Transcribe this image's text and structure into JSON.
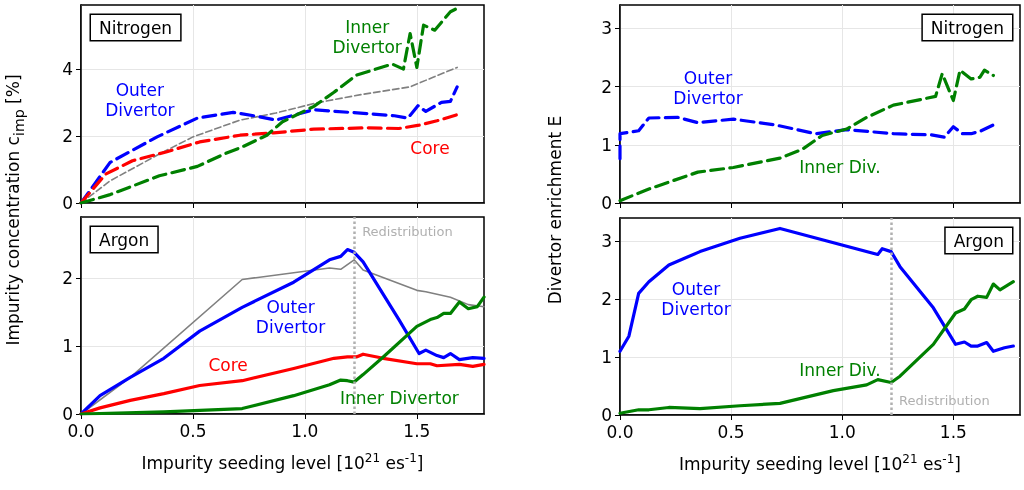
{
  "chart_data": [
    {
      "type": "line",
      "ylabel": "Impurity concentration c$_{imp}$ [%]",
      "annotations": [
        "Nitrogen"
      ],
      "xlim": [
        0,
        1.8
      ],
      "xticks": [
        0,
        0.5,
        1,
        1.5
      ],
      "ylim": [
        0,
        5.9
      ],
      "yticks": [
        0,
        2,
        4
      ],
      "tick_labels": "y",
      "grid": true,
      "line_style": "dashed",
      "series": [
        {
          "name": "Outer Divertor",
          "color": "#0000ff",
          "x": [
            0,
            0.13,
            0.34,
            0.52,
            0.68,
            0.79,
            0.87,
            1.04,
            1.28,
            1.4,
            1.46,
            1.505,
            1.54,
            1.61,
            1.65,
            1.68
          ],
          "values": [
            0,
            1.21,
            1.97,
            2.53,
            2.7,
            2.58,
            2.47,
            2.78,
            2.66,
            2.6,
            2.53,
            2.9,
            2.73,
            3.0,
            3.03,
            3.46
          ]
        },
        {
          "name": "Core",
          "color": "#ff0000",
          "x": [
            0,
            0.11,
            0.23,
            0.38,
            0.53,
            0.71,
            0.86,
            1.04,
            1.28,
            1.42,
            1.51,
            1.59,
            1.68
          ],
          "values": [
            0,
            0.86,
            1.26,
            1.52,
            1.82,
            2.02,
            2.09,
            2.2,
            2.24,
            2.22,
            2.32,
            2.45,
            2.63
          ]
        },
        {
          "name": "Inner Divertor",
          "color": "#008000",
          "x": [
            0,
            0.13,
            0.35,
            0.52,
            0.64,
            0.72,
            0.83,
            0.9,
            1.04,
            1.13,
            1.23,
            1.39,
            1.44,
            1.46,
            1.47,
            1.5,
            1.53,
            1.58,
            1.65,
            1.68
          ],
          "values": [
            0,
            0.25,
            0.81,
            1.09,
            1.46,
            1.67,
            2.02,
            2.42,
            2.88,
            3.3,
            3.81,
            4.14,
            3.99,
            4.7,
            5.05,
            4.04,
            5.3,
            5.15,
            5.7,
            5.8
          ]
        },
        {
          "color": "#808080",
          "x": [
            0,
            0.13,
            0.35,
            0.5,
            0.71,
            0.87,
            1.05,
            1.25,
            1.47,
            1.57,
            1.68
          ],
          "values": [
            0,
            0.66,
            1.46,
            1.97,
            2.47,
            2.68,
            2.98,
            3.23,
            3.46,
            3.74,
            4.04
          ]
        }
      ]
    },
    {
      "type": "line",
      "ylabel": "Divertor enrichment E",
      "annotations": [
        "Nitrogen"
      ],
      "xlim": [
        0,
        1.8
      ],
      "xticks": [
        0,
        0.5,
        1,
        1.5
      ],
      "ylim": [
        0,
        3.4
      ],
      "yticks": [
        0,
        1,
        2,
        3
      ],
      "tick_labels": "y",
      "grid": true,
      "line_style": "dashed",
      "series": [
        {
          "name": "Outer Divertor",
          "color": "#0000ff",
          "x": [
            0,
            0,
            0.084,
            0.13,
            0.26,
            0.35,
            0.51,
            0.7,
            0.88,
            1.02,
            1.23,
            1.4,
            1.46,
            1.5,
            1.54,
            1.58,
            1.62,
            1.68
          ],
          "values": [
            0.76,
            1.19,
            1.24,
            1.46,
            1.47,
            1.38,
            1.44,
            1.34,
            1.19,
            1.26,
            1.19,
            1.17,
            1.13,
            1.31,
            1.19,
            1.19,
            1.23,
            1.34
          ]
        },
        {
          "name": "Inner Div.",
          "color": "#008000",
          "x": [
            0,
            0.13,
            0.35,
            0.51,
            0.72,
            0.82,
            0.91,
            1.02,
            1.11,
            1.23,
            1.42,
            1.45,
            1.5,
            1.53,
            1.58,
            1.62,
            1.64,
            1.68
          ],
          "values": [
            0.04,
            0.24,
            0.53,
            0.61,
            0.77,
            0.92,
            1.16,
            1.27,
            1.47,
            1.68,
            1.83,
            2.22,
            1.76,
            2.28,
            2.13,
            2.16,
            2.28,
            2.19
          ]
        }
      ]
    },
    {
      "type": "line",
      "xlabel": "Impurity seeding level [10$^{21}$ es$^{-1}$]",
      "annotations": [
        "Argon"
      ],
      "xlim": [
        0,
        1.8
      ],
      "xticks": [
        {
          "value": 0,
          "label": "0.0"
        },
        {
          "value": 0.5,
          "label": "0.5"
        },
        {
          "value": 1,
          "label": "1.0"
        },
        {
          "value": 1.5,
          "label": "1.5"
        }
      ],
      "ylim": [
        0,
        2.9
      ],
      "yticks": [
        0,
        1,
        2
      ],
      "grid": true,
      "line_style": "solid",
      "ref_lines": [
        {
          "axis": "x",
          "value": 1.22,
          "label": "Redistribution",
          "color": "#b0b0b0",
          "line_style": "dotted"
        }
      ],
      "series": [
        {
          "name": "Outer Divertor",
          "color": "#0000ff",
          "x": [
            0,
            0.085,
            0.22,
            0.37,
            0.53,
            0.72,
            0.95,
            1.11,
            1.16,
            1.19,
            1.22,
            1.26,
            1.42,
            1.51,
            1.54,
            1.59,
            1.62,
            1.65,
            1.69,
            1.75,
            1.8
          ],
          "values": [
            0,
            0.27,
            0.54,
            0.82,
            1.22,
            1.57,
            1.94,
            2.27,
            2.32,
            2.42,
            2.38,
            2.24,
            1.39,
            0.89,
            0.94,
            0.86,
            0.83,
            0.89,
            0.8,
            0.83,
            0.82
          ]
        },
        {
          "name": "Core",
          "color": "#ff0000",
          "x": [
            0,
            0.085,
            0.22,
            0.37,
            0.53,
            0.72,
            0.95,
            1.13,
            1.19,
            1.23,
            1.26,
            1.35,
            1.5,
            1.56,
            1.59,
            1.69,
            1.75,
            1.8
          ],
          "values": [
            0,
            0.09,
            0.2,
            0.3,
            0.42,
            0.49,
            0.67,
            0.82,
            0.84,
            0.84,
            0.88,
            0.82,
            0.74,
            0.74,
            0.71,
            0.73,
            0.7,
            0.73
          ]
        },
        {
          "name": "Inner Divertor",
          "color": "#008000",
          "x": [
            0,
            0.37,
            0.72,
            0.95,
            1.11,
            1.16,
            1.19,
            1.22,
            1.26,
            1.35,
            1.5,
            1.56,
            1.59,
            1.62,
            1.65,
            1.69,
            1.73,
            1.77,
            1.8
          ],
          "values": [
            0,
            0.03,
            0.08,
            0.27,
            0.43,
            0.5,
            0.49,
            0.47,
            0.58,
            0.84,
            1.29,
            1.39,
            1.42,
            1.48,
            1.48,
            1.65,
            1.55,
            1.58,
            1.72
          ]
        },
        {
          "color": "#808080",
          "x": [
            0,
            0.22,
            0.72,
            1.11,
            1.16,
            1.22,
            1.26,
            1.5,
            1.54,
            1.65,
            1.73,
            1.8
          ],
          "values": [
            0,
            0.54,
            1.98,
            2.15,
            2.13,
            2.27,
            2.12,
            1.82,
            1.8,
            1.72,
            1.61,
            1.58
          ]
        }
      ]
    },
    {
      "type": "line",
      "xlabel": "Impurity seeding level [10$^{21}$ es$^{-1}$]",
      "annotations": [
        "Argon"
      ],
      "xlim": [
        0,
        1.8
      ],
      "xticks": [
        {
          "value": 0,
          "label": "0.0"
        },
        {
          "value": 0.5,
          "label": "0.5"
        },
        {
          "value": 1,
          "label": "1.0"
        },
        {
          "value": 1.5,
          "label": "1.5"
        }
      ],
      "ylim": [
        0,
        3.4
      ],
      "yticks": [
        0,
        1,
        2,
        3
      ],
      "grid": true,
      "line_style": "solid",
      "ref_lines": [
        {
          "axis": "x",
          "value": 1.22,
          "label": "Redistribution",
          "color": "#b0b0b0",
          "line_style": "dotted"
        }
      ],
      "series": [
        {
          "name": "Outer Divertor",
          "color": "#0000ff",
          "x": [
            0,
            0.04,
            0.084,
            0.13,
            0.22,
            0.36,
            0.54,
            0.72,
            1.16,
            1.18,
            1.22,
            1.26,
            1.41,
            1.51,
            1.55,
            1.58,
            1.61,
            1.65,
            1.68,
            1.73,
            1.77
          ],
          "values": [
            1.1,
            1.36,
            2.1,
            2.3,
            2.59,
            2.82,
            3.05,
            3.22,
            2.77,
            2.87,
            2.82,
            2.56,
            1.85,
            1.22,
            1.26,
            1.19,
            1.19,
            1.25,
            1.1,
            1.16,
            1.19
          ]
        },
        {
          "name": "Inner Div.",
          "color": "#008000",
          "x": [
            0,
            0.084,
            0.13,
            0.22,
            0.36,
            0.54,
            0.72,
            0.96,
            1.11,
            1.16,
            1.22,
            1.26,
            1.41,
            1.51,
            1.55,
            1.58,
            1.61,
            1.65,
            1.68,
            1.71,
            1.77
          ],
          "values": [
            0.03,
            0.09,
            0.09,
            0.13,
            0.11,
            0.16,
            0.2,
            0.42,
            0.52,
            0.61,
            0.56,
            0.67,
            1.22,
            1.76,
            1.83,
            1.99,
            2.05,
            2.03,
            2.26,
            2.16,
            2.3
          ]
        }
      ]
    }
  ]
}
